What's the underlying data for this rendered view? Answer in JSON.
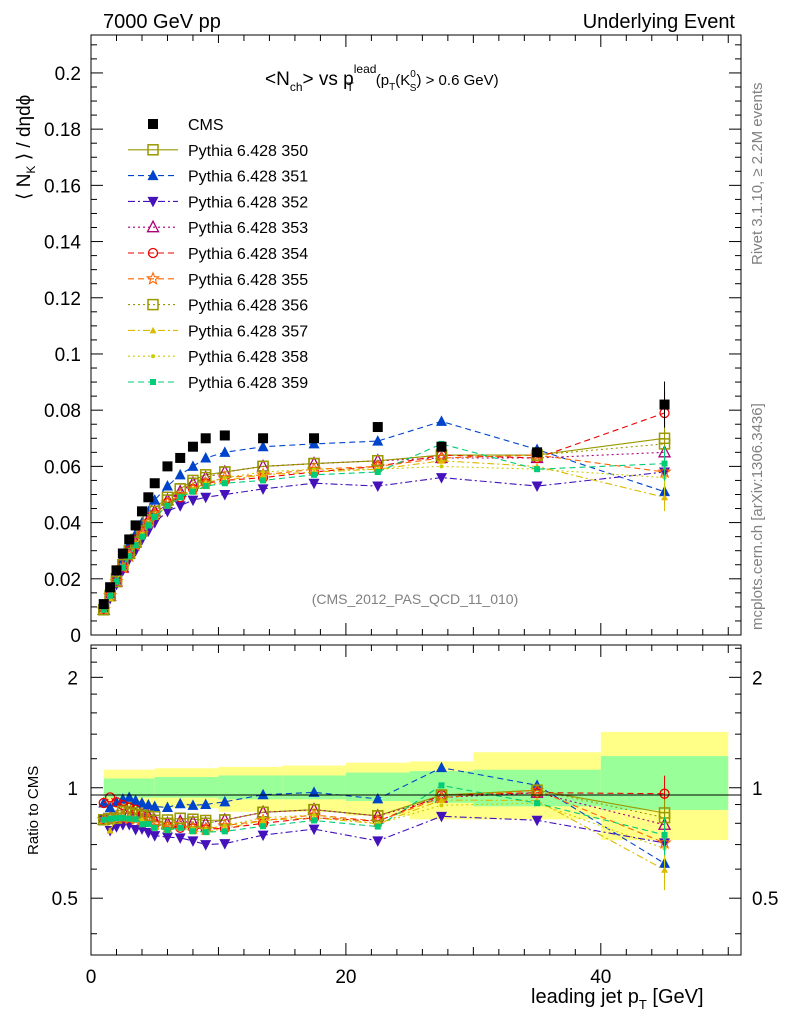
{
  "header": {
    "left": "7000 GeV pp",
    "right": "Underlying Event"
  },
  "side_labels": {
    "rivet": "Rivet 3.1.10, ≥ 2.2M events",
    "mcplots": "mcplots.cern.ch [arXiv:1306.3436]"
  },
  "ref_label": "(CMS_2012_PAS_QCD_11_010)",
  "legend_entries": [
    "CMS",
    "Pythia 6.428 350",
    "Pythia 6.428 351",
    "Pythia 6.428 352",
    "Pythia 6.428 353",
    "Pythia 6.428 354",
    "Pythia 6.428 355",
    "Pythia 6.428 356",
    "Pythia 6.428 357",
    "Pythia 6.428 358",
    "Pythia 6.428 359"
  ],
  "ratio_ylabel": "Ratio to CMS",
  "xlabel_main": "leading jet p",
  "xlabel_sub": "T",
  "xlabel_unit": " [GeV]",
  "chart_data": [
    {
      "type": "scatter",
      "panel": "main",
      "title_parts": {
        "a": "<N",
        "a_sub": "ch",
        "b": "> vs p",
        "b_sup": "lead",
        "b_sub": "T",
        "c": "(p",
        "c_sub": "T",
        "c_mid": "(K",
        "c_sup2": "0",
        "c_sub2": "S",
        "c_end": ") > 0.6 GeV)"
      },
      "ylabel_parts": {
        "a": "⟨ N",
        "a_sub": "K",
        "b": " ⟩ / dηdϕ"
      },
      "xlim": [
        0,
        51
      ],
      "ylim": [
        0,
        0.2135
      ],
      "x_ticks": [
        0,
        20,
        40
      ],
      "y_ticks": [
        0,
        0.02,
        0.04,
        0.06,
        0.08,
        0.1,
        0.12,
        0.14,
        0.16,
        0.18,
        0.2
      ],
      "y_tick_labels": [
        "0",
        "0.02",
        "0.04",
        "0.06",
        "0.08",
        "0.1",
        "0.12",
        "0.14",
        "0.16",
        "0.18",
        "0.2"
      ],
      "x": [
        1.0,
        1.5,
        2.0,
        2.5,
        3.0,
        3.5,
        4.0,
        4.5,
        5.0,
        6.0,
        7.0,
        8.0,
        9.0,
        10.5,
        13.5,
        17.5,
        22.5,
        27.5,
        35.0,
        45.0
      ],
      "series": [
        {
          "name": "CMS",
          "color": "#000000",
          "marker": "square",
          "line": "none",
          "values": [
            0.011,
            0.017,
            0.023,
            0.029,
            0.034,
            0.039,
            0.044,
            0.049,
            0.054,
            0.06,
            0.063,
            0.067,
            0.07,
            0.071,
            0.07,
            0.07,
            0.074,
            0.067,
            0.065,
            0.082
          ]
        },
        {
          "name": "Pythia 6.428 350",
          "color": "#999900",
          "marker": "open-square",
          "line": "solid",
          "values": [
            0.009,
            0.014,
            0.02,
            0.025,
            0.03,
            0.034,
            0.038,
            0.042,
            0.045,
            0.049,
            0.052,
            0.055,
            0.057,
            0.058,
            0.06,
            0.061,
            0.062,
            0.064,
            0.064,
            0.07
          ]
        },
        {
          "name": "Pythia 6.428 351",
          "color": "#0044cc",
          "marker": "triangle-up",
          "line": "dashed",
          "values": [
            0.01,
            0.015,
            0.021,
            0.027,
            0.032,
            0.036,
            0.04,
            0.044,
            0.048,
            0.053,
            0.057,
            0.06,
            0.063,
            0.065,
            0.067,
            0.068,
            0.069,
            0.076,
            0.066,
            0.051
          ]
        },
        {
          "name": "Pythia 6.428 352",
          "color": "#4411bb",
          "marker": "triangle-down",
          "line": "dashdot",
          "values": [
            0.009,
            0.013,
            0.018,
            0.023,
            0.027,
            0.03,
            0.034,
            0.037,
            0.04,
            0.044,
            0.046,
            0.048,
            0.049,
            0.05,
            0.052,
            0.054,
            0.053,
            0.056,
            0.053,
            0.058
          ]
        },
        {
          "name": "Pythia 6.428 353",
          "color": "#aa0077",
          "marker": "open-triangle",
          "line": "dotted",
          "values": [
            0.009,
            0.014,
            0.019,
            0.024,
            0.029,
            0.033,
            0.037,
            0.041,
            0.044,
            0.048,
            0.051,
            0.054,
            0.056,
            0.058,
            0.06,
            0.061,
            0.062,
            0.063,
            0.063,
            0.065
          ]
        },
        {
          "name": "Pythia 6.428 354",
          "color": "#ee0000",
          "marker": "open-circle",
          "line": "dashed",
          "values": [
            0.01,
            0.016,
            0.021,
            0.026,
            0.03,
            0.034,
            0.037,
            0.04,
            0.043,
            0.047,
            0.049,
            0.052,
            0.054,
            0.055,
            0.056,
            0.058,
            0.06,
            0.064,
            0.063,
            0.079
          ]
        },
        {
          "name": "Pythia 6.428 355",
          "color": "#ff6600",
          "marker": "open-star",
          "line": "dashed",
          "values": [
            0.009,
            0.014,
            0.019,
            0.024,
            0.028,
            0.032,
            0.036,
            0.04,
            0.043,
            0.047,
            0.05,
            0.052,
            0.054,
            0.056,
            0.057,
            0.059,
            0.06,
            0.063,
            0.064,
            0.058
          ]
        },
        {
          "name": "Pythia 6.428 356",
          "color": "#999900",
          "marker": "open-square",
          "line": "dotted",
          "values": [
            0.009,
            0.014,
            0.019,
            0.025,
            0.029,
            0.033,
            0.037,
            0.041,
            0.044,
            0.048,
            0.052,
            0.054,
            0.056,
            0.058,
            0.06,
            0.061,
            0.062,
            0.064,
            0.064,
            0.068
          ]
        },
        {
          "name": "Pythia 6.428 357",
          "color": "#ddbb00",
          "marker": "small-triangle",
          "line": "dashdot",
          "values": [
            0.009,
            0.013,
            0.019,
            0.024,
            0.028,
            0.032,
            0.035,
            0.039,
            0.042,
            0.046,
            0.049,
            0.051,
            0.053,
            0.055,
            0.057,
            0.058,
            0.059,
            0.062,
            0.06,
            0.049
          ]
        },
        {
          "name": "Pythia 6.428 358",
          "color": "#cccc00",
          "marker": "small-dot",
          "line": "dotted",
          "values": [
            0.009,
            0.014,
            0.019,
            0.024,
            0.028,
            0.032,
            0.036,
            0.039,
            0.042,
            0.046,
            0.049,
            0.052,
            0.054,
            0.056,
            0.058,
            0.059,
            0.059,
            0.06,
            0.059,
            0.056
          ]
        },
        {
          "name": "Pythia 6.428 359",
          "color": "#00cc77",
          "marker": "small-square",
          "line": "dashed",
          "values": [
            0.009,
            0.014,
            0.019,
            0.024,
            0.028,
            0.032,
            0.035,
            0.039,
            0.042,
            0.046,
            0.049,
            0.051,
            0.053,
            0.054,
            0.055,
            0.057,
            0.058,
            0.068,
            0.059,
            0.061
          ]
        }
      ]
    },
    {
      "type": "scatter",
      "panel": "ratio",
      "ylabel": "Ratio to CMS",
      "xlim": [
        0,
        51
      ],
      "ylim": [
        0.35,
        2.45
      ],
      "y_ticks": [
        0.5,
        1,
        2
      ],
      "y_tick_labels": [
        "0.5",
        "1",
        "2"
      ],
      "x_tick_labels": [
        "0",
        "20",
        "40"
      ],
      "bin_edges": [
        1,
        5,
        10,
        15,
        20,
        25,
        30,
        40,
        50
      ],
      "band_green": [
        [
          0.94,
          1.06
        ],
        [
          0.94,
          1.07
        ],
        [
          0.93,
          1.08
        ],
        [
          0.93,
          1.08
        ],
        [
          0.92,
          1.1
        ],
        [
          0.91,
          1.11
        ],
        [
          0.89,
          1.12
        ],
        [
          0.87,
          1.22
        ]
      ],
      "band_yellow": [
        [
          0.88,
          1.12
        ],
        [
          0.88,
          1.13
        ],
        [
          0.86,
          1.14
        ],
        [
          0.86,
          1.15
        ],
        [
          0.84,
          1.17
        ],
        [
          0.82,
          1.18
        ],
        [
          0.82,
          1.25
        ],
        [
          0.72,
          1.42
        ]
      ]
    }
  ]
}
